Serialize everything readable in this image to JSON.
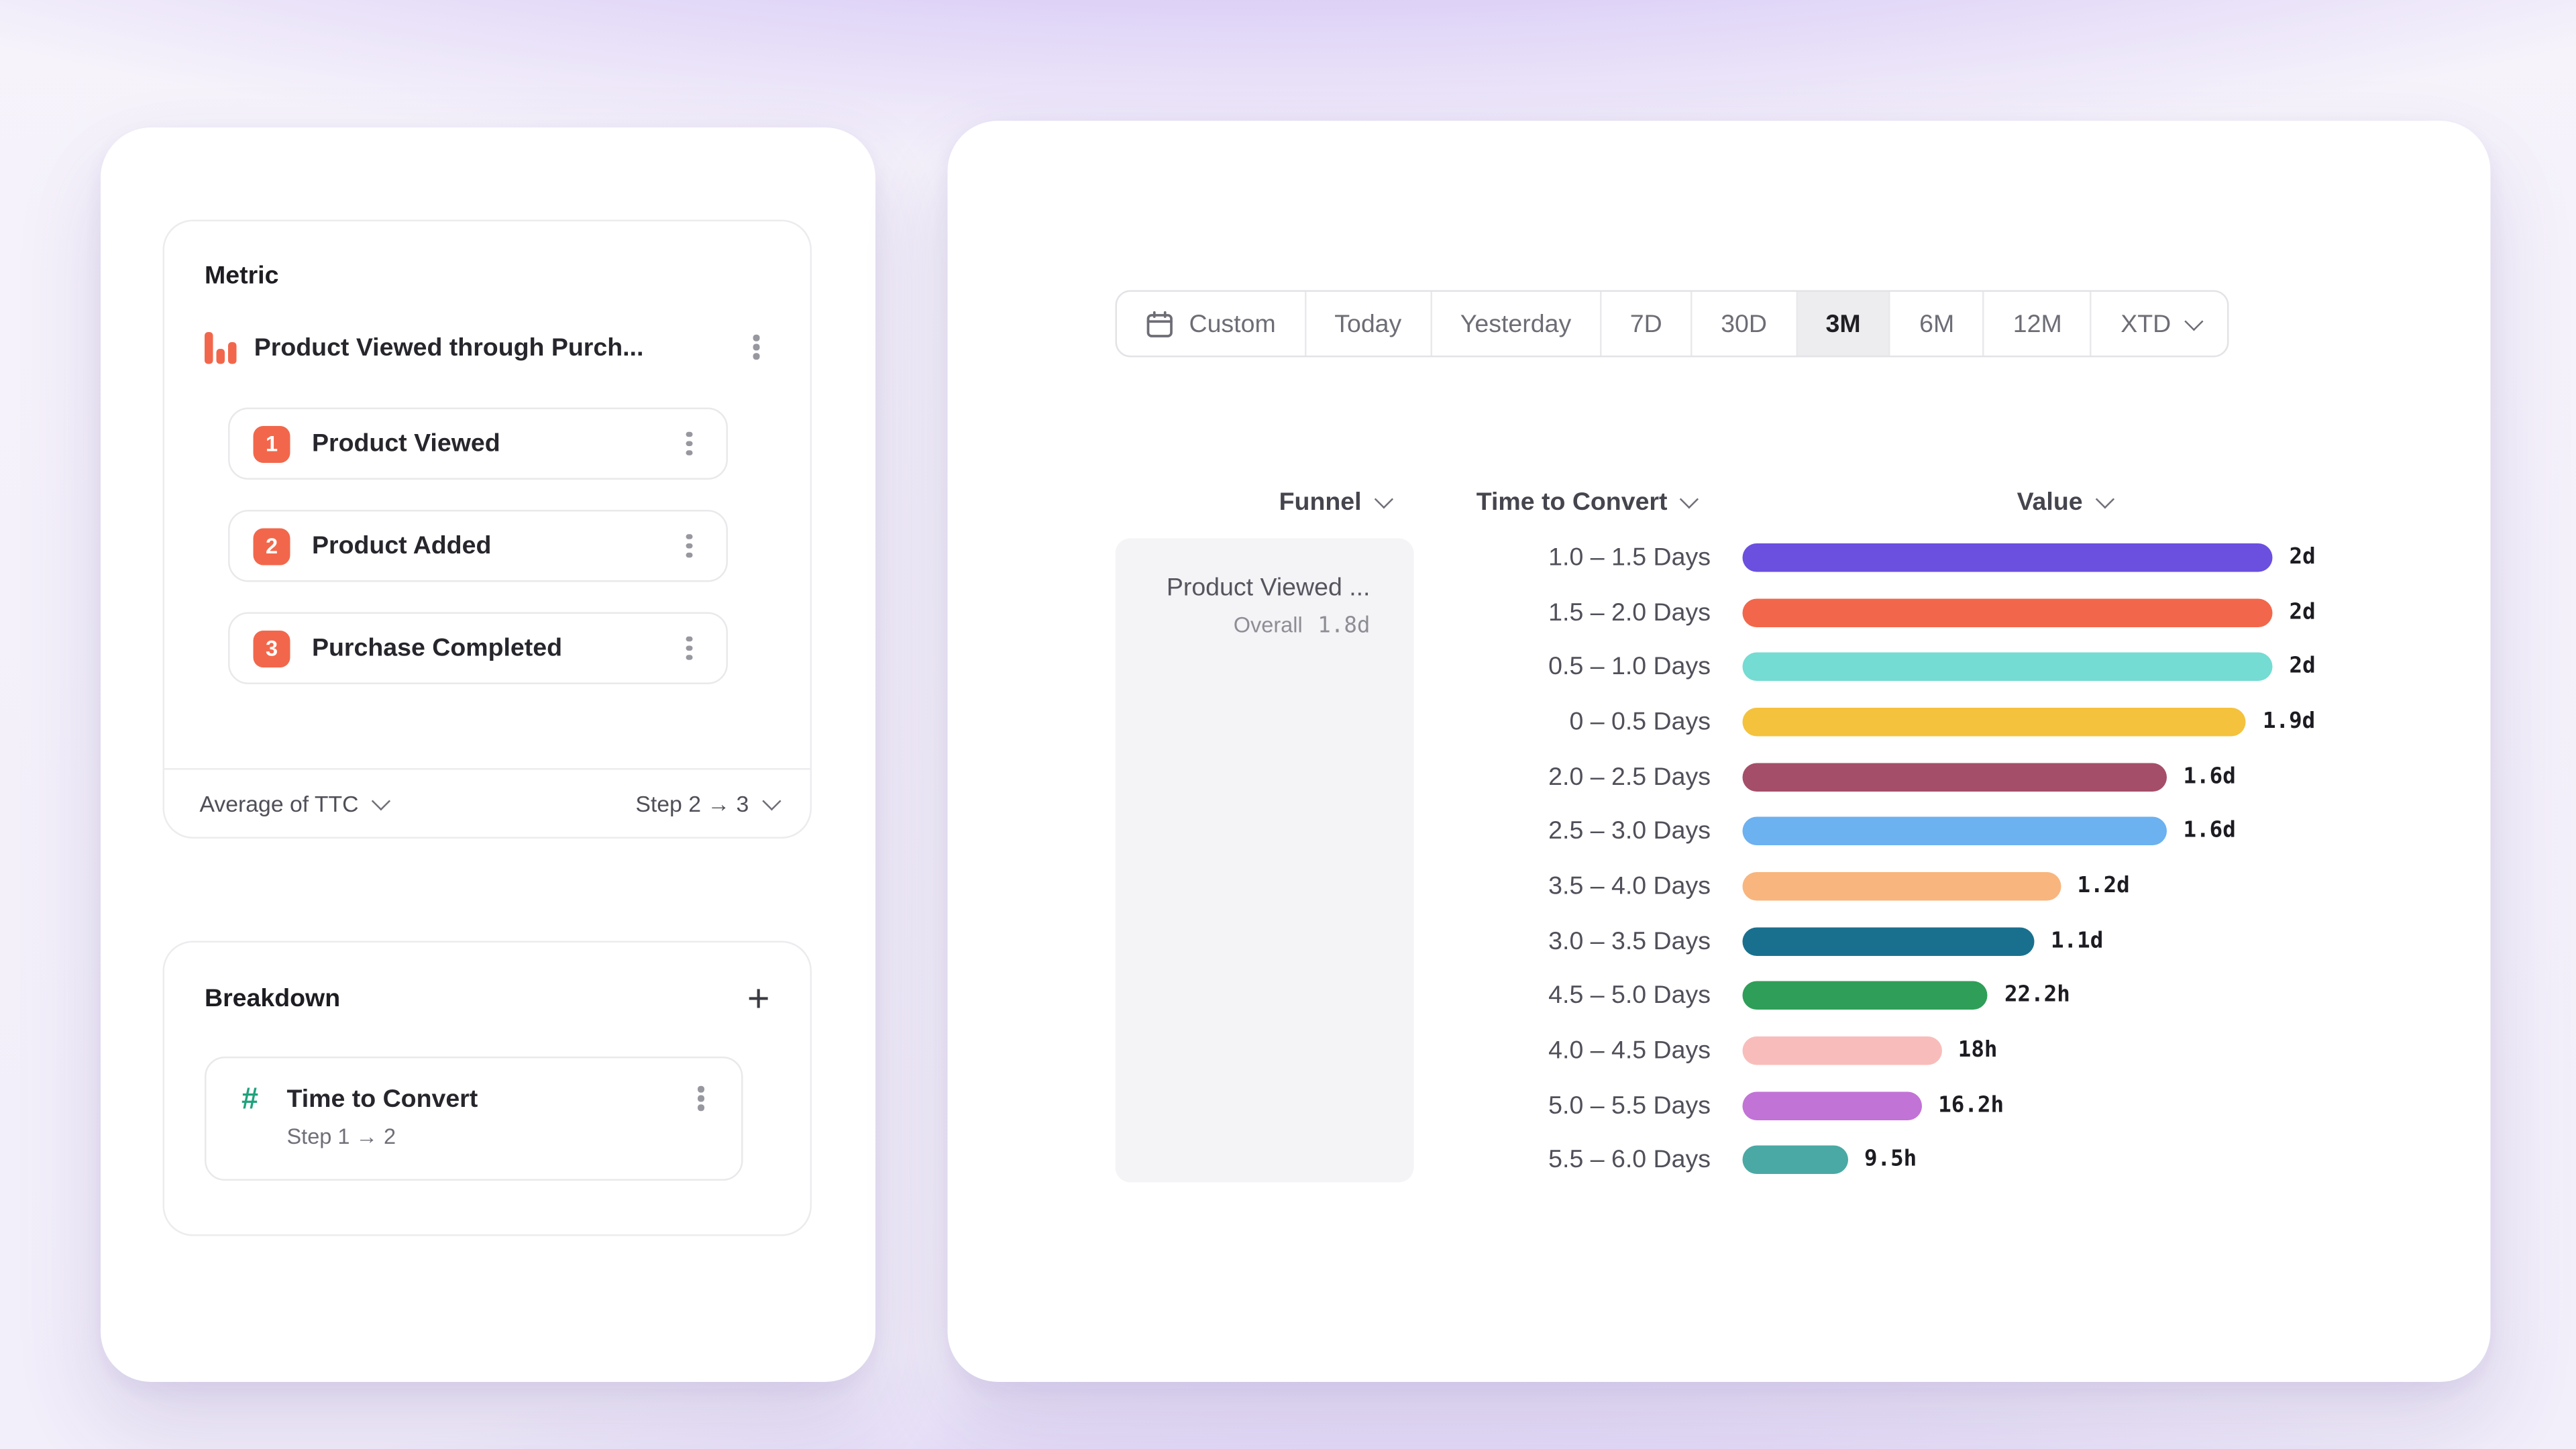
{
  "metric_panel": {
    "title": "Metric",
    "funnel_name": "Product Viewed through Purch...",
    "steps": [
      {
        "num": "1",
        "label": "Product Viewed"
      },
      {
        "num": "2",
        "label": "Product Added"
      },
      {
        "num": "3",
        "label": "Purchase Completed"
      }
    ],
    "aggregation_label": "Average of TTC",
    "step_range_label": "Step 2 → 3"
  },
  "breakdown_panel": {
    "title": "Breakdown",
    "item_label": "Time to Convert",
    "item_sub": "Step 1 → 2"
  },
  "date_picker": {
    "selected": "3M",
    "segments": [
      {
        "label": "Custom",
        "icon": "calendar"
      },
      {
        "label": "Today"
      },
      {
        "label": "Yesterday"
      },
      {
        "label": "7D"
      },
      {
        "label": "30D"
      },
      {
        "label": "3M"
      },
      {
        "label": "6M"
      },
      {
        "label": "12M"
      },
      {
        "label": "XTD",
        "chevron": true
      }
    ]
  },
  "table": {
    "headers": {
      "funnel": "Funnel",
      "breakdown": "Time to Convert",
      "value": "Value"
    },
    "funnel_cell": {
      "name": "Product Viewed ...",
      "overall_label": "Overall",
      "overall_value": "1.8d"
    }
  },
  "chart_data": {
    "type": "bar",
    "orientation": "horizontal",
    "value_unit": "days",
    "xlim": [
      0,
      2.1
    ],
    "rows": [
      {
        "category": "1.0 – 1.5 Days",
        "value_days": 2.0,
        "display": "2d",
        "color": "#6b4fdf"
      },
      {
        "category": "1.5 – 2.0 Days",
        "value_days": 2.0,
        "display": "2d",
        "color": "#f2674b"
      },
      {
        "category": "0.5 – 1.0 Days",
        "value_days": 2.0,
        "display": "2d",
        "color": "#74dcd2"
      },
      {
        "category": "0 – 0.5 Days",
        "value_days": 1.9,
        "display": "1.9d",
        "color": "#f4c23d"
      },
      {
        "category": "2.0 – 2.5 Days",
        "value_days": 1.6,
        "display": "1.6d",
        "color": "#a54e69"
      },
      {
        "category": "2.5 – 3.0 Days",
        "value_days": 1.6,
        "display": "1.6d",
        "color": "#6cb1f0"
      },
      {
        "category": "3.5 – 4.0 Days",
        "value_days": 1.2,
        "display": "1.2d",
        "color": "#f9b57e"
      },
      {
        "category": "3.0 – 3.5 Days",
        "value_days": 1.1,
        "display": "1.1d",
        "color": "#19708e"
      },
      {
        "category": "4.5 – 5.0 Days",
        "value_days": 0.925,
        "display": "22.2h",
        "color": "#2f9e58"
      },
      {
        "category": "4.0 – 4.5 Days",
        "value_days": 0.75,
        "display": "18h",
        "color": "#f8bdbb"
      },
      {
        "category": "5.0 – 5.5 Days",
        "value_days": 0.675,
        "display": "16.2h",
        "color": "#c273d6"
      },
      {
        "category": "5.5 – 6.0 Days",
        "value_days": 0.396,
        "display": "9.5h",
        "color": "#4aa9a4"
      }
    ]
  }
}
